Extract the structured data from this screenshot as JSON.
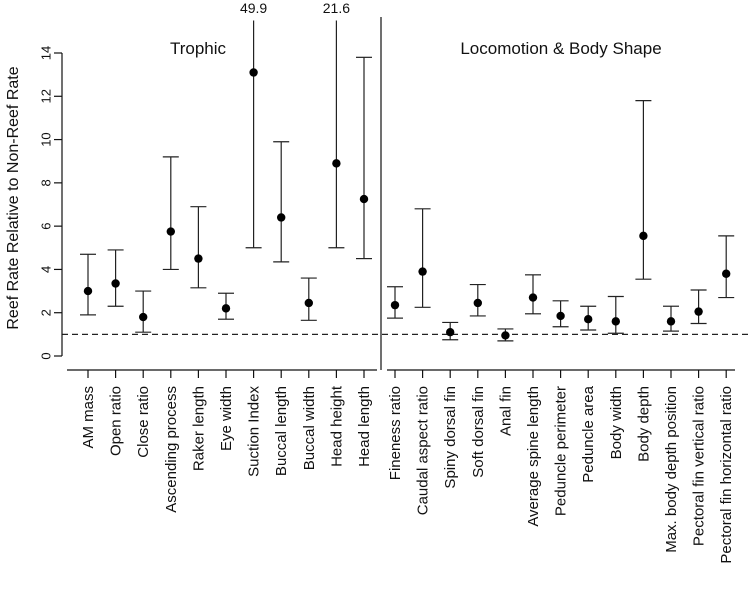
{
  "chart_data": {
    "type": "errorbar",
    "ylabel": "Reef Rate Relative to Non-Reef Rate",
    "ylim": [
      0,
      15.5
    ],
    "yticks": [
      0,
      2,
      4,
      6,
      8,
      10,
      12,
      14
    ],
    "reference_line": 1,
    "groups": [
      {
        "label": "Trophic",
        "categories": [
          {
            "name": "AM mass",
            "value": 3.0,
            "low": 1.9,
            "high": 4.7
          },
          {
            "name": "Open ratio",
            "value": 3.35,
            "low": 2.3,
            "high": 4.9
          },
          {
            "name": "Close ratio",
            "value": 1.8,
            "low": 1.1,
            "high": 3.0
          },
          {
            "name": "Ascending process",
            "value": 5.75,
            "low": 4.0,
            "high": 9.2
          },
          {
            "name": "Raker length",
            "value": 4.5,
            "low": 3.15,
            "high": 6.9
          },
          {
            "name": "Eye width",
            "value": 2.2,
            "low": 1.7,
            "high": 2.9
          },
          {
            "name": "Suction Index",
            "value": 13.1,
            "low": 5.0,
            "high": 49.9,
            "high_label": "49.9"
          },
          {
            "name": "Buccal length",
            "value": 6.4,
            "low": 4.35,
            "high": 9.9
          },
          {
            "name": "Buccal width",
            "value": 2.45,
            "low": 1.65,
            "high": 3.6
          },
          {
            "name": "Head height",
            "value": 8.9,
            "low": 5.0,
            "high": 21.6,
            "high_label": "21.6"
          },
          {
            "name": "Head length",
            "value": 7.25,
            "low": 4.5,
            "high": 13.8
          }
        ]
      },
      {
        "label": "Locomotion & Body Shape",
        "categories": [
          {
            "name": "Fineness ratio",
            "value": 2.35,
            "low": 1.75,
            "high": 3.2
          },
          {
            "name": "Caudal aspect ratio",
            "value": 3.9,
            "low": 2.25,
            "high": 6.8
          },
          {
            "name": "Spiny dorsal fin",
            "value": 1.1,
            "low": 0.75,
            "high": 1.55
          },
          {
            "name": "Soft dorsal fin",
            "value": 2.45,
            "low": 1.85,
            "high": 3.3
          },
          {
            "name": "Anal fin",
            "value": 0.95,
            "low": 0.7,
            "high": 1.25
          },
          {
            "name": "Average spine length",
            "value": 2.7,
            "low": 1.95,
            "high": 3.75
          },
          {
            "name": "Peduncle perimeter",
            "value": 1.85,
            "low": 1.35,
            "high": 2.55
          },
          {
            "name": "Peduncle area",
            "value": 1.7,
            "low": 1.2,
            "high": 2.3
          },
          {
            "name": "Body width",
            "value": 1.6,
            "low": 1.05,
            "high": 2.75
          },
          {
            "name": "Body depth",
            "value": 5.55,
            "low": 3.55,
            "high": 11.8
          },
          {
            "name": "Max. body depth position",
            "value": 1.6,
            "low": 1.15,
            "high": 2.3
          },
          {
            "name": "Pectoral fin vertical ratio",
            "value": 2.05,
            "low": 1.5,
            "high": 3.05
          },
          {
            "name": "Pectoral fin horizontal ratio",
            "value": 3.8,
            "low": 2.7,
            "high": 5.55
          }
        ]
      }
    ]
  }
}
